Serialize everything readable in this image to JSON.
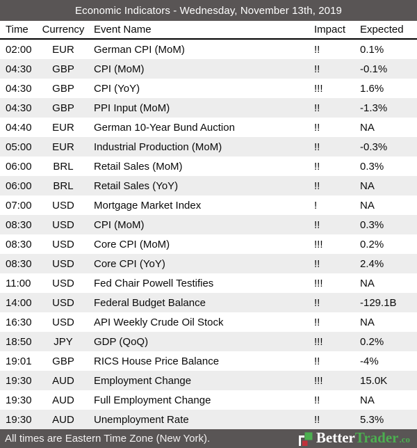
{
  "title_bar": {
    "title": "Economic Indicators - Wednesday, November 13th, 2019"
  },
  "table": {
    "columns": [
      "Time",
      "Currency",
      "Event Name",
      "Impact",
      "Expected"
    ],
    "rows": [
      {
        "time": "02:00",
        "currency": "EUR",
        "event": "German CPI (MoM)",
        "impact": "!!",
        "expected": "0.1%"
      },
      {
        "time": "04:30",
        "currency": "GBP",
        "event": "CPI (MoM)",
        "impact": "!!",
        "expected": "-0.1%"
      },
      {
        "time": "04:30",
        "currency": "GBP",
        "event": "CPI (YoY)",
        "impact": "!!!",
        "expected": "1.6%"
      },
      {
        "time": "04:30",
        "currency": "GBP",
        "event": "PPI Input (MoM)",
        "impact": "!!",
        "expected": "-1.3%"
      },
      {
        "time": "04:40",
        "currency": "EUR",
        "event": "German 10-Year Bund Auction",
        "impact": "!!",
        "expected": "NA"
      },
      {
        "time": "05:00",
        "currency": "EUR",
        "event": "Industrial Production (MoM)",
        "impact": "!!",
        "expected": "-0.3%"
      },
      {
        "time": "06:00",
        "currency": "BRL",
        "event": "Retail Sales (MoM)",
        "impact": "!!",
        "expected": "0.3%"
      },
      {
        "time": "06:00",
        "currency": "BRL",
        "event": "Retail Sales (YoY)",
        "impact": "!!",
        "expected": "NA"
      },
      {
        "time": "07:00",
        "currency": "USD",
        "event": "Mortgage Market Index",
        "impact": "!",
        "expected": "NA"
      },
      {
        "time": "08:30",
        "currency": "USD",
        "event": "CPI (MoM)",
        "impact": "!!",
        "expected": "0.3%"
      },
      {
        "time": "08:30",
        "currency": "USD",
        "event": "Core CPI (MoM)",
        "impact": "!!!",
        "expected": "0.2%"
      },
      {
        "time": "08:30",
        "currency": "USD",
        "event": "Core CPI (YoY)",
        "impact": "!!",
        "expected": "2.4%"
      },
      {
        "time": "11:00",
        "currency": "USD",
        "event": "Fed Chair Powell Testifies",
        "impact": "!!!",
        "expected": "NA"
      },
      {
        "time": "14:00",
        "currency": "USD",
        "event": "Federal Budget Balance",
        "impact": "!!",
        "expected": "-129.1B"
      },
      {
        "time": "16:30",
        "currency": "USD",
        "event": "API Weekly Crude Oil Stock",
        "impact": "!!",
        "expected": "NA"
      },
      {
        "time": "18:50",
        "currency": "JPY",
        "event": "GDP (QoQ)",
        "impact": "!!!",
        "expected": "0.2%"
      },
      {
        "time": "19:01",
        "currency": "GBP",
        "event": "RICS House Price Balance",
        "impact": "!!",
        "expected": "-4%"
      },
      {
        "time": "19:30",
        "currency": "AUD",
        "event": "Employment Change",
        "impact": "!!!",
        "expected": "15.0K"
      },
      {
        "time": "19:30",
        "currency": "AUD",
        "event": "Full Employment Change",
        "impact": "!!",
        "expected": "NA"
      },
      {
        "time": "19:30",
        "currency": "AUD",
        "event": "Unemployment Rate",
        "impact": "!!",
        "expected": "5.3%"
      }
    ]
  },
  "footer": {
    "note": "All times are Eastern Time Zone (New York).",
    "brand": {
      "name_primary": "Better",
      "name_secondary": "Trader",
      "tld": ".co",
      "logo_icon": "candlestick-squares-icon"
    }
  },
  "colors": {
    "bar_bg": "#595555",
    "row_alt": "#ededed",
    "brand_green": "#4CAF50",
    "brand_red": "#C0313B"
  }
}
